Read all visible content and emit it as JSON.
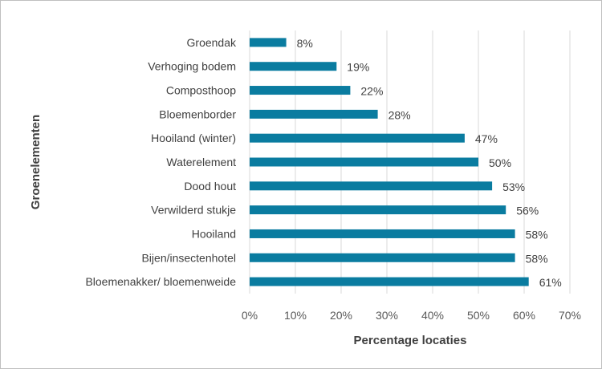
{
  "chart_data": {
    "type": "bar",
    "orientation": "horizontal",
    "title": "",
    "xlabel": "Percentage locaties",
    "ylabel": "Groenelementen",
    "xlim": [
      0,
      70
    ],
    "grid": true,
    "bar_color": "#0A7CA0",
    "categories": [
      "Groendak",
      "Verhoging bodem",
      "Composthoop",
      "Bloemenborder",
      "Hooiland (winter)",
      "Waterelement",
      "Dood hout",
      "Verwilderd stukje",
      "Hooiland",
      "Bijen/insectenhotel",
      "Bloemenakker/ bloemenweide"
    ],
    "values": [
      8,
      19,
      22,
      28,
      47,
      50,
      53,
      56,
      58,
      58,
      61
    ],
    "data_labels": [
      "8%",
      "19%",
      "22%",
      "28%",
      "47%",
      "50%",
      "53%",
      "56%",
      "58%",
      "58%",
      "61%"
    ],
    "x_ticks": [
      "0%",
      "10%",
      "20%",
      "30%",
      "40%",
      "50%",
      "60%",
      "70%"
    ]
  }
}
